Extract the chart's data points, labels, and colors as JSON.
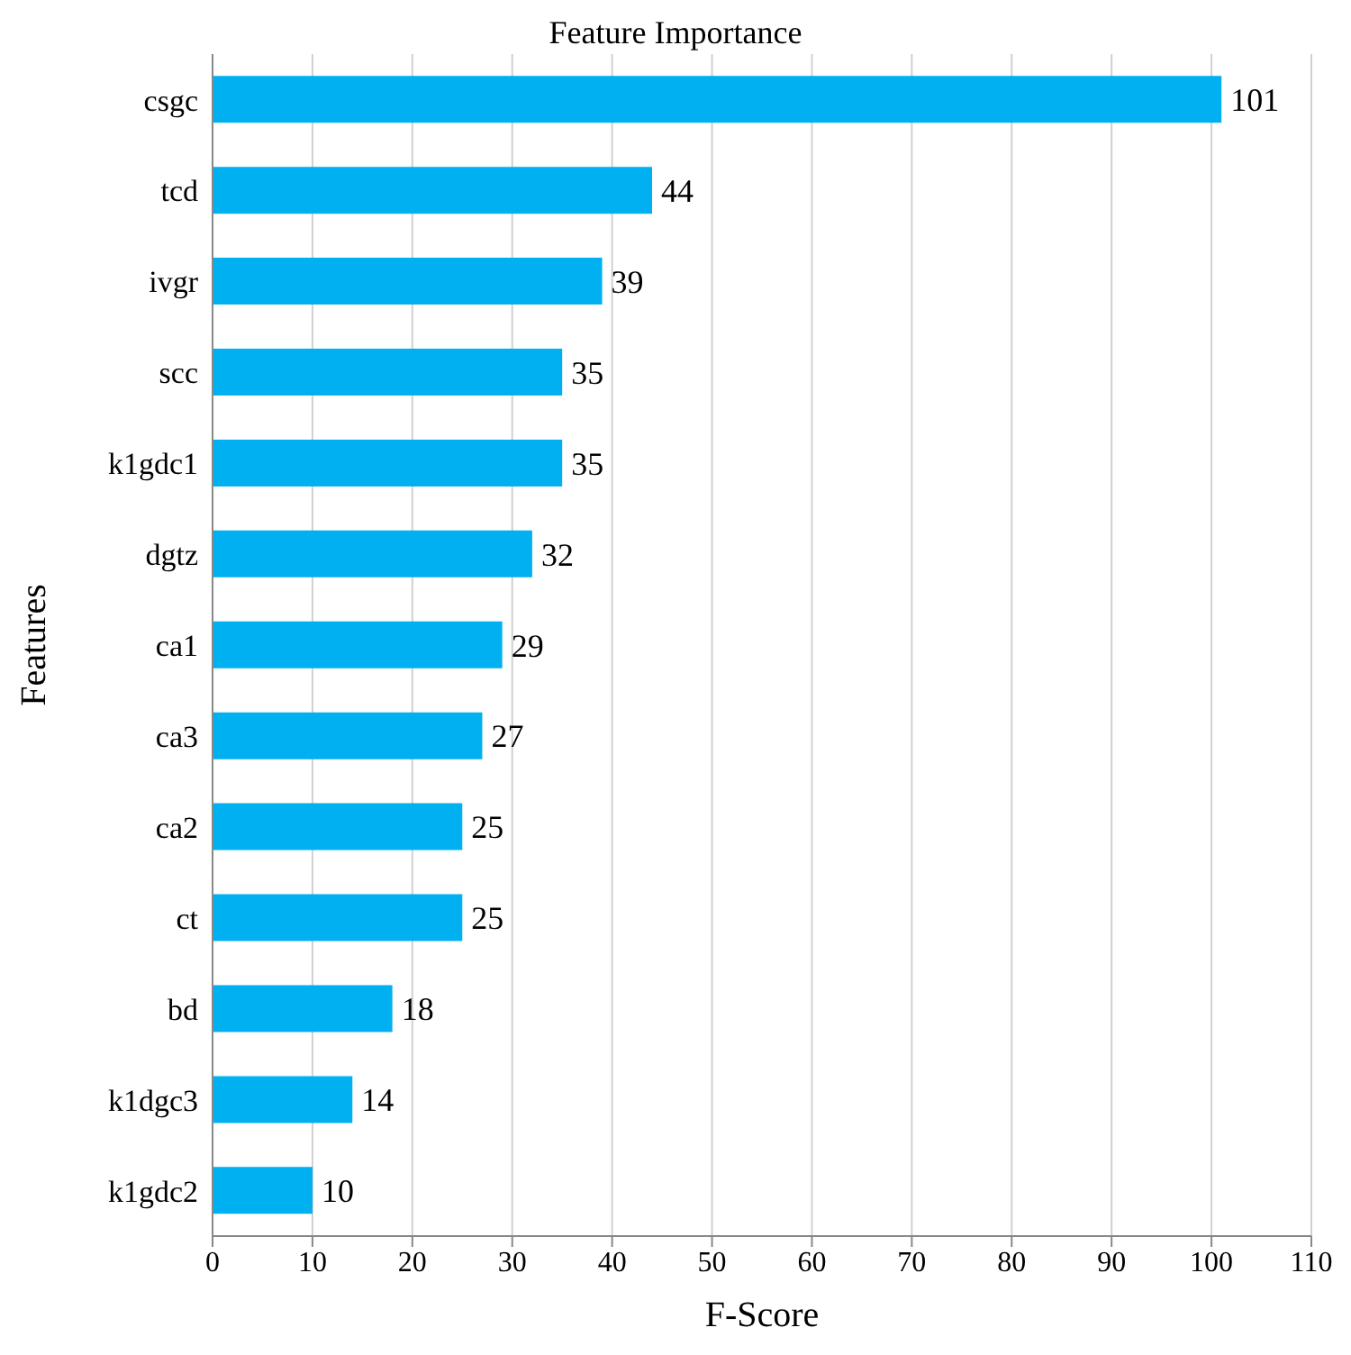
{
  "chart_data": {
    "type": "bar",
    "orientation": "horizontal",
    "title": "Feature Importance",
    "xlabel": "F-Score",
    "ylabel": "Features",
    "categories": [
      "csgc",
      "tcd",
      "ivgr",
      "scc",
      "k1gdc1",
      "dgtz",
      "ca1",
      "ca3",
      "ca2",
      "ct",
      "bd",
      "k1dgc3",
      "k1gdc2"
    ],
    "values": [
      101,
      44,
      39,
      35,
      35,
      32,
      29,
      27,
      25,
      25,
      18,
      14,
      10
    ],
    "color": "#00b0f0",
    "xlim": [
      0,
      110
    ],
    "xticks": [
      0,
      10,
      20,
      30,
      40,
      50,
      60,
      70,
      80,
      90,
      100,
      110
    ],
    "grid": "x",
    "data_labels": true,
    "legend": false
  }
}
